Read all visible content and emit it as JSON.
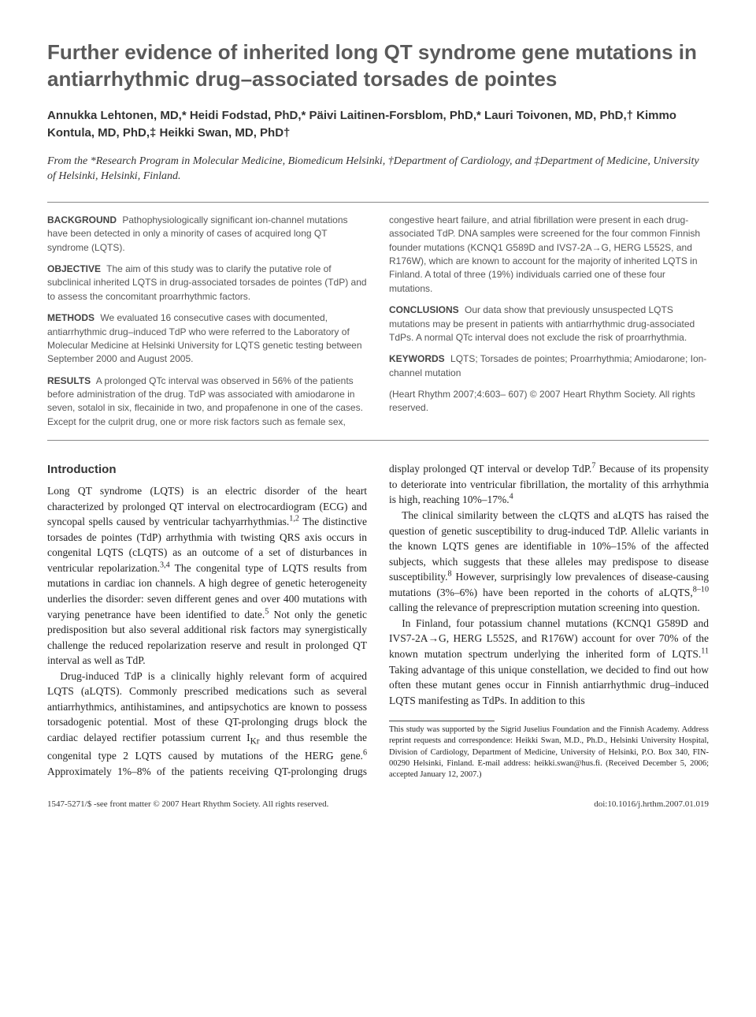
{
  "title": "Further evidence of inherited long QT syndrome gene mutations in antiarrhythmic drug–associated torsades de pointes",
  "authors": "Annukka Lehtonen, MD,* Heidi Fodstad, PhD,* Päivi Laitinen-Forsblom, PhD,* Lauri Toivonen, MD, PhD,† Kimmo Kontula, MD, PhD,‡ Heikki Swan, MD, PhD†",
  "affiliations": "From the *Research Program in Molecular Medicine, Biomedicum Helsinki, †Department of Cardiology, and ‡Department of Medicine, University of Helsinki, Helsinki, Finland.",
  "abstract": {
    "background": {
      "label": "BACKGROUND",
      "text": "Pathophysiologically significant ion-channel mutations have been detected in only a minority of cases of acquired long QT syndrome (LQTS)."
    },
    "objective": {
      "label": "OBJECTIVE",
      "text": "The aim of this study was to clarify the putative role of subclinical inherited LQTS in drug-associated torsades de pointes (TdP) and to assess the concomitant proarrhythmic factors."
    },
    "methods": {
      "label": "METHODS",
      "text": "We evaluated 16 consecutive cases with documented, antiarrhythmic drug–induced TdP who were referred to the Laboratory of Molecular Medicine at Helsinki University for LQTS genetic testing between September 2000 and August 2005."
    },
    "results": {
      "label": "RESULTS",
      "text": "A prolonged QTc interval was observed in 56% of the patients before administration of the drug. TdP was associated with amiodarone in seven, sotalol in six, flecainide in two, and propafenone in one of the cases. Except for the culprit drug, one or more risk factors such as female sex, congestive heart failure, and atrial fibrillation were present in each drug-associated TdP. DNA samples were screened for the four common Finnish founder mutations (KCNQ1 G589D and IVS7-2A→G, HERG L552S, and R176W), which are known to account for the majority of inherited LQTS in Finland. A total of three (19%) individuals carried one of these four mutations."
    },
    "conclusions": {
      "label": "CONCLUSIONS",
      "text": "Our data show that previously unsuspected LQTS mutations may be present in patients with antiarrhythmic drug-associated TdPs. A normal QTc interval does not exclude the risk of proarrhythmia."
    },
    "keywords": {
      "label": "KEYWORDS",
      "text": "LQTS; Torsades de pointes; Proarrhythmia; Amiodarone; Ion-channel mutation"
    },
    "citation": "(Heart Rhythm 2007;4:603– 607) © 2007 Heart Rhythm Society. All rights reserved."
  },
  "intro": {
    "heading": "Introduction",
    "p1a": "Long QT syndrome (LQTS) is an electric disorder of the heart characterized by prolonged QT interval on electrocardiogram (ECG) and syncopal spells caused by ventricular tachyarrhythmias.",
    "p1b": " The distinctive torsades de pointes (TdP) arrhythmia with twisting QRS axis occurs in congenital LQTS (cLQTS) as an outcome of a set of disturbances in ventricular repolarization.",
    "p1c": " The congenital type of LQTS results from mutations in cardiac ion channels. A high degree of genetic heterogeneity underlies the disorder: seven different genes and over 400 mutations with varying penetrance have been identified to date.",
    "p1d": " Not only the genetic predisposition but also several additional risk factors may synergistically challenge the reduced repolarization reserve and result in prolonged QT interval as well as TdP.",
    "p2a": "Drug-induced TdP is a clinically highly relevant form of acquired LQTS (aLQTS). Commonly prescribed medications such as several antiarrhythmics, antihistamines, and antipsychotics are known to possess torsadogenic potential. Most of these QT-prolonging drugs block the cardiac delayed rectifier potassium current I",
    "p2b": " and thus resemble the congenital type 2 LQTS caused by mutations of the HERG gene.",
    "p2c": " Approximately 1%–8% of the patients receiving QT-prolonging drugs display prolonged QT interval or develop TdP.",
    "p2d": " Because of its propensity to deteriorate into ventricular fibrillation, the mortality of this arrhythmia is high, reaching 10%–17%.",
    "p3a": "The clinical similarity between the cLQTS and aLQTS has raised the question of genetic susceptibility to drug-induced TdP. Allelic variants in the known LQTS genes are identifiable in 10%–15% of the affected subjects, which suggests that these alleles may predispose to disease susceptibility.",
    "p3b": " However, surprisingly low prevalences of disease-causing mutations (3%–6%) have been reported in the cohorts of aLQTS,",
    "p3c": " calling the relevance of preprescription mutation screening into question.",
    "p4a": "In Finland, four potassium channel mutations (KCNQ1 G589D and IVS7-2A→G, HERG L552S, and R176W) account for over 70% of the known mutation spectrum underlying the inherited form of LQTS.",
    "p4b": " Taking advantage of this unique constellation, we decided to find out how often these mutant genes occur in Finnish antiarrhythmic drug–induced LQTS manifesting as TdPs. In addition to this",
    "refs": {
      "r12": "1,2",
      "r34": "3,4",
      "r5": "5",
      "r6": "6",
      "r7": "7",
      "r4": "4",
      "r8": "8",
      "r810": "8–10",
      "r11": "11",
      "ikr": "Kr"
    }
  },
  "footnote": "This study was supported by the Sigrid Juselius Foundation and the Finnish Academy. Address reprint requests and correspondence: Heikki Swan, M.D., Ph.D., Helsinki University Hospital, Division of Cardiology, Department of Medicine, University of Helsinki, P.O. Box 340, FIN-00290 Helsinki, Finland. E-mail address: heikki.swan@hus.fi. (Received December 5, 2006; accepted January 12, 2007.)",
  "footer": {
    "left": "1547-5271/$ -see front matter © 2007 Heart Rhythm Society. All rights reserved.",
    "right": "doi:10.1016/j.hrthm.2007.01.019"
  },
  "colors": {
    "title": "#5a5a5a",
    "abstract_text": "#555555",
    "body_text": "#222222",
    "rule": "#888888",
    "background": "#ffffff"
  },
  "fonts": {
    "title_family": "Arial",
    "title_size_pt": 20,
    "title_weight": "bold",
    "author_size_pt": 11,
    "abstract_size_pt": 9,
    "body_size_pt": 10,
    "footnote_size_pt": 8
  }
}
